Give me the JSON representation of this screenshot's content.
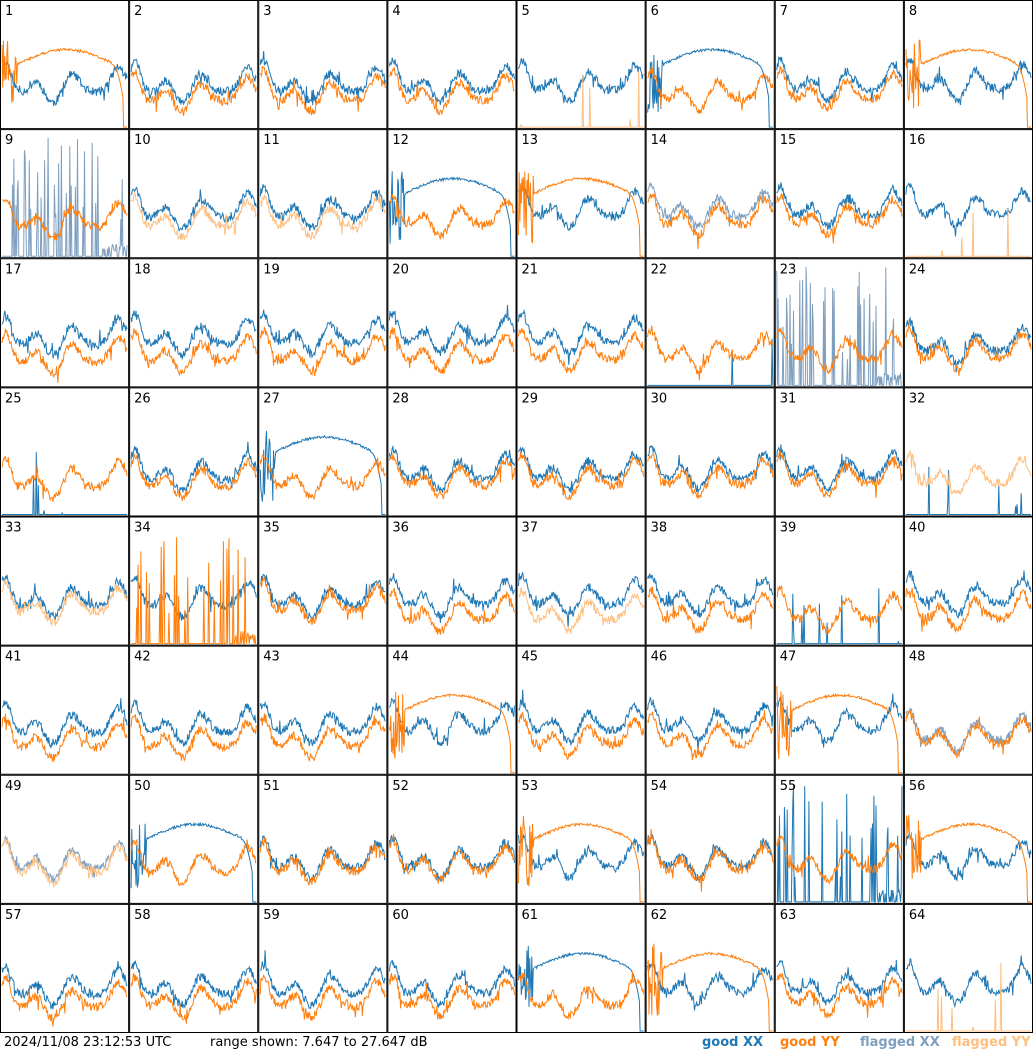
{
  "footer": {
    "timestamp": "2024/11/08 23:12:53 UTC",
    "range_text": "range shown: 7.647 to 27.647 dB",
    "legend": [
      {
        "label": "good XX",
        "color": "#1f77b4"
      },
      {
        "label": "good YY",
        "color": "#ff7f0e"
      },
      {
        "label": "flagged XX",
        "color": "#7f9fbf"
      },
      {
        "label": "flagged YY",
        "color": "#ffbf80"
      }
    ]
  },
  "chart_data": {
    "type": "line",
    "title": "",
    "ylim_db": [
      7.647,
      27.647
    ],
    "grid": {
      "rows": 8,
      "cols": 8
    },
    "panel_labels": [
      "1",
      "2",
      "3",
      "4",
      "5",
      "6",
      "7",
      "8",
      "9",
      "10",
      "11",
      "12",
      "13",
      "14",
      "15",
      "16",
      "17",
      "18",
      "19",
      "20",
      "21",
      "22",
      "23",
      "24",
      "25",
      "26",
      "27",
      "28",
      "29",
      "30",
      "31",
      "32",
      "33",
      "34",
      "35",
      "36",
      "37",
      "38",
      "39",
      "40",
      "41",
      "42",
      "43",
      "44",
      "45",
      "46",
      "47",
      "48",
      "49",
      "50",
      "51",
      "52",
      "53",
      "54",
      "55",
      "56",
      "57",
      "58",
      "59",
      "60",
      "61",
      "62",
      "63",
      "64"
    ],
    "series_names": [
      "good XX",
      "good YY",
      "flagged XX",
      "flagged YY"
    ],
    "panels": [
      {
        "id": "1",
        "xx": "normal",
        "yy": "rolloff"
      },
      {
        "id": "2",
        "xx": "normal",
        "yy": "normal"
      },
      {
        "id": "3",
        "xx": "normal",
        "yy": "normal"
      },
      {
        "id": "4",
        "xx": "normal",
        "yy": "normal"
      },
      {
        "id": "5",
        "xx": "normal",
        "yy": "flat-low-flagged"
      },
      {
        "id": "6",
        "xx": "rolloff",
        "yy": "normal"
      },
      {
        "id": "7",
        "xx": "normal",
        "yy": "normal"
      },
      {
        "id": "8",
        "xx": "normal",
        "yy": "rolloff"
      },
      {
        "id": "9",
        "xx": "spiky-flagged",
        "yy": "normal"
      },
      {
        "id": "10",
        "xx": "normal",
        "yy": "normal-flagged"
      },
      {
        "id": "11",
        "xx": "normal",
        "yy": "normal-flagged"
      },
      {
        "id": "12",
        "xx": "rolloff",
        "yy": "normal"
      },
      {
        "id": "13",
        "xx": "normal",
        "yy": "rolloff"
      },
      {
        "id": "14",
        "xx": "normal-flagged",
        "yy": "normal"
      },
      {
        "id": "15",
        "xx": "normal",
        "yy": "normal"
      },
      {
        "id": "16",
        "xx": "normal",
        "yy": "flat-low-flagged"
      },
      {
        "id": "17",
        "xx": "normal",
        "yy": "normal"
      },
      {
        "id": "18",
        "xx": "normal",
        "yy": "normal"
      },
      {
        "id": "19",
        "xx": "normal",
        "yy": "normal"
      },
      {
        "id": "20",
        "xx": "normal",
        "yy": "normal"
      },
      {
        "id": "21",
        "xx": "normal",
        "yy": "normal"
      },
      {
        "id": "22",
        "xx": "flat-low",
        "yy": "normal"
      },
      {
        "id": "23",
        "xx": "spiky-flagged",
        "yy": "normal"
      },
      {
        "id": "24",
        "xx": "normal",
        "yy": "normal"
      },
      {
        "id": "25",
        "xx": "flat-low",
        "yy": "normal"
      },
      {
        "id": "26",
        "xx": "normal",
        "yy": "normal"
      },
      {
        "id": "27",
        "xx": "rolloff",
        "yy": "normal"
      },
      {
        "id": "28",
        "xx": "normal",
        "yy": "normal"
      },
      {
        "id": "29",
        "xx": "normal",
        "yy": "normal"
      },
      {
        "id": "30",
        "xx": "normal",
        "yy": "normal"
      },
      {
        "id": "31",
        "xx": "normal",
        "yy": "normal"
      },
      {
        "id": "32",
        "xx": "flat-low",
        "yy": "normal-flagged"
      },
      {
        "id": "33",
        "xx": "normal",
        "yy": "normal-flagged"
      },
      {
        "id": "34",
        "xx": "normal",
        "yy": "spiky"
      },
      {
        "id": "35",
        "xx": "normal",
        "yy": "normal"
      },
      {
        "id": "36",
        "xx": "normal",
        "yy": "normal"
      },
      {
        "id": "37",
        "xx": "normal",
        "yy": "normal-flagged"
      },
      {
        "id": "38",
        "xx": "normal",
        "yy": "normal"
      },
      {
        "id": "39",
        "xx": "flat-low",
        "yy": "normal"
      },
      {
        "id": "40",
        "xx": "normal",
        "yy": "normal"
      },
      {
        "id": "41",
        "xx": "normal",
        "yy": "normal"
      },
      {
        "id": "42",
        "xx": "normal",
        "yy": "normal"
      },
      {
        "id": "43",
        "xx": "normal",
        "yy": "normal"
      },
      {
        "id": "44",
        "xx": "normal",
        "yy": "rolloff"
      },
      {
        "id": "45",
        "xx": "normal",
        "yy": "normal"
      },
      {
        "id": "46",
        "xx": "normal",
        "yy": "normal"
      },
      {
        "id": "47",
        "xx": "normal",
        "yy": "rolloff"
      },
      {
        "id": "48",
        "xx": "normal-flagged",
        "yy": "normal"
      },
      {
        "id": "49",
        "xx": "normal-flagged",
        "yy": "normal-flagged"
      },
      {
        "id": "50",
        "xx": "rolloff",
        "yy": "normal"
      },
      {
        "id": "51",
        "xx": "normal",
        "yy": "normal"
      },
      {
        "id": "52",
        "xx": "normal",
        "yy": "normal"
      },
      {
        "id": "53",
        "xx": "normal",
        "yy": "rolloff"
      },
      {
        "id": "54",
        "xx": "normal",
        "yy": "normal"
      },
      {
        "id": "55",
        "xx": "spiky",
        "yy": "normal"
      },
      {
        "id": "56",
        "xx": "normal",
        "yy": "rolloff"
      },
      {
        "id": "57",
        "xx": "normal",
        "yy": "normal"
      },
      {
        "id": "58",
        "xx": "normal",
        "yy": "normal"
      },
      {
        "id": "59",
        "xx": "normal",
        "yy": "normal"
      },
      {
        "id": "60",
        "xx": "normal",
        "yy": "normal"
      },
      {
        "id": "61",
        "xx": "rolloff",
        "yy": "normal"
      },
      {
        "id": "62",
        "xx": "normal",
        "yy": "rolloff"
      },
      {
        "id": "63",
        "xx": "normal",
        "yy": "normal"
      },
      {
        "id": "64",
        "xx": "normal",
        "yy": "flat-low-flagged"
      }
    ]
  }
}
